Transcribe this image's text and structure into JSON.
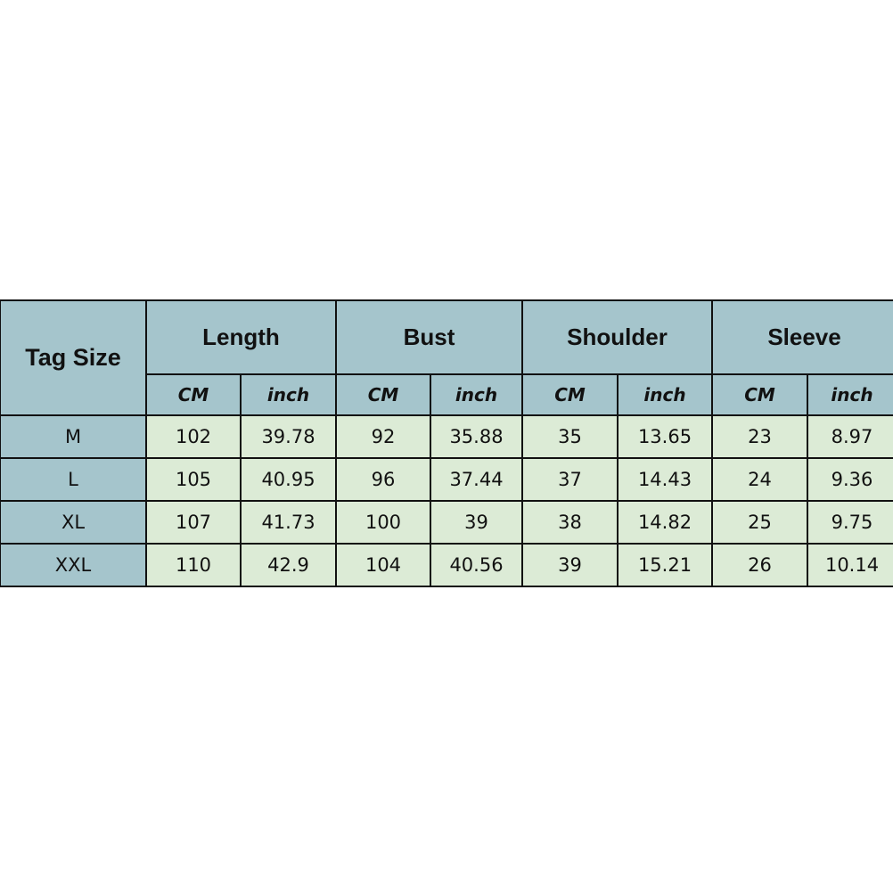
{
  "table": {
    "tag_header": "Tag Size",
    "groups": [
      "Length",
      "Bust",
      "Shoulder",
      "Sleeve"
    ],
    "units": [
      "CM",
      "inch"
    ],
    "rows": [
      {
        "size": "M",
        "values": [
          "102",
          "39.78",
          "92",
          "35.88",
          "35",
          "13.65",
          "23",
          "8.97"
        ]
      },
      {
        "size": "L",
        "values": [
          "105",
          "40.95",
          "96",
          "37.44",
          "37",
          "14.43",
          "24",
          "9.36"
        ]
      },
      {
        "size": "XL",
        "values": [
          "107",
          "41.73",
          "100",
          "39",
          "38",
          "14.82",
          "25",
          "9.75"
        ]
      },
      {
        "size": "XXL",
        "values": [
          "110",
          "42.9",
          "104",
          "40.56",
          "39",
          "15.21",
          "26",
          "10.14"
        ]
      }
    ],
    "colors": {
      "header": "#a5c5cc",
      "cell": "#dcebd6",
      "border": "#111111"
    }
  }
}
